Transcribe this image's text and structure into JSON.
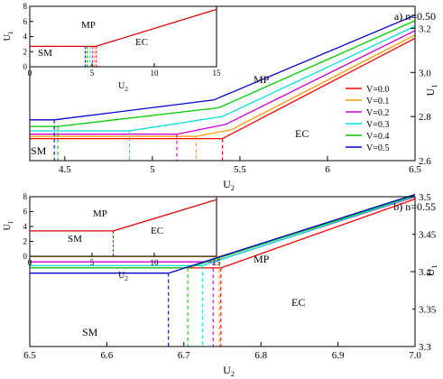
{
  "chart_data": [
    {
      "type": "line",
      "panel_label": "a) n=0.50",
      "xlabel": "U",
      "xlabel_sub": "2",
      "ylabel": "U",
      "ylabel_sub": "1",
      "xlim": [
        4.3,
        6.5
      ],
      "ylim": [
        2.6,
        3.3
      ],
      "xticks": [
        4.5,
        5,
        5.5,
        6,
        6.5
      ],
      "xtick_labels": [
        "4.5",
        "5",
        "5.5",
        "6",
        "6.5"
      ],
      "yticks": [
        2.6,
        2.8,
        3.0,
        3.2
      ],
      "ytick_labels": [
        "2.6",
        "2.8",
        "3.0",
        "3.2"
      ],
      "region_labels": [
        "MP",
        "EC",
        "SM"
      ],
      "series": [
        {
          "name": "V=0.0",
          "color": "#ff0000",
          "x": [
            4.3,
            5.4,
            6.5
          ],
          "y": [
            2.7,
            2.7,
            3.155
          ],
          "transition_x": 5.4
        },
        {
          "name": "V=0.1",
          "color": "#ff9900",
          "x": [
            4.3,
            5.25,
            5.45,
            6.5
          ],
          "y": [
            2.71,
            2.71,
            2.74,
            3.17
          ],
          "transition_x": 5.25
        },
        {
          "name": "V=0.2",
          "color": "#cc00cc",
          "x": [
            4.3,
            5.14,
            5.42,
            6.5
          ],
          "y": [
            2.72,
            2.72,
            2.765,
            3.19
          ],
          "transition_x": 5.14
        },
        {
          "name": "V=0.3",
          "color": "#00dddd",
          "x": [
            4.3,
            4.87,
            5.4,
            6.5
          ],
          "y": [
            2.735,
            2.735,
            2.8,
            3.21
          ],
          "transition_x": 4.87
        },
        {
          "name": "V=0.4",
          "color": "#00cc00",
          "x": [
            4.3,
            4.46,
            5.38,
            6.5
          ],
          "y": [
            2.755,
            2.755,
            2.84,
            3.235
          ],
          "transition_x": 4.46
        },
        {
          "name": "V=0.5",
          "color": "#0000cc",
          "x": [
            4.3,
            4.44,
            5.35,
            6.5
          ],
          "y": [
            2.785,
            2.785,
            2.875,
            3.26
          ],
          "transition_x": 4.44
        }
      ],
      "inset": {
        "xlim": [
          0,
          15
        ],
        "ylim": [
          0,
          8
        ],
        "xticks": [
          0,
          5,
          10,
          15
        ],
        "xtick_labels": [
          "0",
          "5",
          "10",
          "15"
        ],
        "yticks": [
          0,
          2,
          4,
          6,
          8
        ],
        "ytick_labels": [
          "0",
          "2",
          "4",
          "6",
          "8"
        ],
        "xlabel": "U",
        "xlabel_sub": "2",
        "ylabel": "U",
        "ylabel_sub": "1",
        "region_labels": [
          "MP",
          "EC",
          "SM"
        ],
        "line": {
          "x": [
            0,
            5.3,
            15
          ],
          "y": [
            2.7,
            2.7,
            7.6
          ]
        },
        "transition_x": [
          4.45,
          4.6,
          4.85,
          5.05,
          5.2,
          5.35
        ]
      }
    },
    {
      "type": "line",
      "panel_label": "b) n=0.55",
      "xlabel": "U",
      "xlabel_sub": "2",
      "ylabel": "U",
      "ylabel_sub": "1",
      "xlim": [
        6.5,
        7.0
      ],
      "ylim": [
        3.3,
        3.5
      ],
      "xticks": [
        6.5,
        6.6,
        6.7,
        6.8,
        6.9,
        7.0
      ],
      "xtick_labels": [
        "6.5",
        "6.6",
        "6.7",
        "6.8",
        "6.9",
        "7.0"
      ],
      "yticks": [
        3.3,
        3.4,
        3.5
      ],
      "ytick_labels": [
        "3.3",
        "3.4",
        "3.5"
      ],
      "yticks_minor": [
        3.35,
        3.45
      ],
      "ytick_labels_minor": [
        "3.35",
        "3.45"
      ],
      "region_labels": [
        "MP",
        "EC",
        "SM"
      ],
      "series": [
        {
          "name": "V=0.0",
          "color": "#ff0000",
          "x": [
            6.5,
            6.748,
            7.0
          ],
          "y": [
            3.405,
            3.405,
            3.497
          ],
          "transition_x": 6.748
        },
        {
          "name": "V=0.1",
          "color": "#ff9900",
          "x": [
            6.5,
            6.746,
            7.0
          ],
          "y": [
            3.42,
            3.42,
            3.5
          ],
          "transition_x": 6.746
        },
        {
          "name": "V=0.2",
          "color": "#cc00cc",
          "x": [
            6.5,
            6.738,
            7.0
          ],
          "y": [
            3.413,
            3.413,
            3.5
          ],
          "transition_x": 6.738
        },
        {
          "name": "V=0.3",
          "color": "#00dddd",
          "x": [
            6.5,
            6.724,
            7.0
          ],
          "y": [
            3.408,
            3.408,
            3.501
          ],
          "transition_x": 6.724
        },
        {
          "name": "V=0.4",
          "color": "#00cc00",
          "x": [
            6.5,
            6.705,
            7.0
          ],
          "y": [
            3.405,
            3.405,
            3.502
          ],
          "transition_x": 6.705
        },
        {
          "name": "V=0.5",
          "color": "#0000cc",
          "x": [
            6.5,
            6.68,
            7.0
          ],
          "y": [
            3.398,
            3.398,
            3.503
          ],
          "transition_x": 6.68
        }
      ],
      "inset": {
        "xlim": [
          0,
          15
        ],
        "ylim": [
          0,
          8
        ],
        "xticks": [
          0,
          5,
          10,
          15
        ],
        "xtick_labels": [
          "0",
          "5",
          "10",
          "15"
        ],
        "yticks": [
          0,
          2,
          4,
          6,
          8
        ],
        "ytick_labels": [
          "0",
          "2",
          "4",
          "6",
          "8"
        ],
        "xlabel": "U",
        "xlabel_sub": "2",
        "ylabel": "U",
        "ylabel_sub": "1",
        "region_labels": [
          "MP",
          "EC",
          "SM"
        ],
        "line": {
          "x": [
            0,
            6.7,
            15
          ],
          "y": [
            3.4,
            3.4,
            7.6
          ]
        },
        "transition_x": [
          6.7
        ]
      }
    }
  ]
}
